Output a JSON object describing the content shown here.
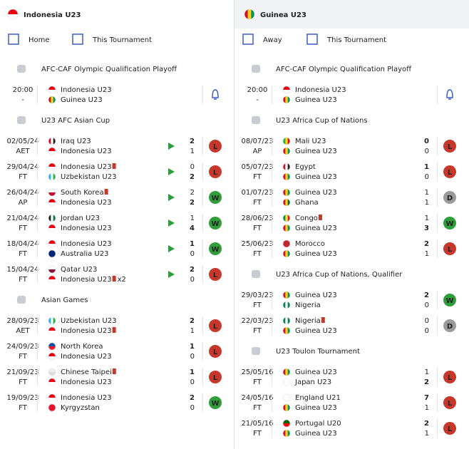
{
  "flags": {
    "Indonesia U23": [
      "#e70011",
      "#ffffff"
    ],
    "Guinea U23": [
      "#ce1126",
      "#fcd116",
      "#009460"
    ],
    "Iraq U23": [
      "#ce1126",
      "#ffffff",
      "#222222"
    ],
    "Uzbekistan U23": [
      "#1eb5e6",
      "#ffffff",
      "#1eb53a"
    ],
    "South Korea": [
      "#ffffff",
      "#c60c30"
    ],
    "Jordan U23": [
      "#222222",
      "#ffffff",
      "#007a3d"
    ],
    "Australia U23": [
      "#00247d",
      "#00247d"
    ],
    "Qatar U23": [
      "#ffffff",
      "#8a1538"
    ],
    "North Korea": [
      "#024fa2",
      "#ed1c27"
    ],
    "Chinese Taipei": [
      "#eeeeee",
      "#dddddd"
    ],
    "Kyrgyzstan": [
      "#e8112d",
      "#e8112d"
    ],
    "Mali U23": [
      "#14b53a",
      "#fcd116",
      "#ce1126"
    ],
    "Egypt": [
      "#ce1126",
      "#ffffff",
      "#222222"
    ],
    "Ghana": [
      "#ce1126",
      "#fcd116",
      "#006b3f"
    ],
    "Congo": [
      "#009543",
      "#fbde4a",
      "#dc241f"
    ],
    "Morocco": [
      "#c1272d",
      "#c1272d"
    ],
    "Nigeria": [
      "#008751",
      "#ffffff",
      "#008751"
    ],
    "Japan U23": [
      "#ffffff",
      "#ffffff"
    ],
    "England U21": [
      "#ffffff",
      "#ffffff"
    ],
    "Portugal U20": [
      "#006600",
      "#ff0000"
    ]
  },
  "columns": [
    {
      "team": "Indonesia U23",
      "filters": [
        "Home",
        "This Tournament"
      ],
      "sections": [
        {
          "competition": "AFC-CAF Olympic Qualification Playoff",
          "matches": [
            {
              "date": "20:00",
              "status": "-",
              "home": "Indonesia U23",
              "away": "Guinea U23",
              "bell": true
            }
          ]
        },
        {
          "competition": "U23 AFC Asian Cup",
          "matches": [
            {
              "date": "02/05/24",
              "status": "AET",
              "home": "Iraq U23",
              "away": "Indonesia U23",
              "home_score": 2,
              "away_score": 1,
              "result": "L",
              "video": true
            },
            {
              "date": "29/04/24",
              "status": "FT",
              "home": "Indonesia U23",
              "away": "Uzbekistan U23",
              "home_score": 0,
              "away_score": 2,
              "result": "L",
              "video": true,
              "home_card": true
            },
            {
              "date": "26/04/24",
              "status": "AP",
              "home": "South Korea",
              "away": "Indonesia U23",
              "home_score": 2,
              "away_score": 2,
              "result": "W",
              "video": true,
              "home_card": true
            },
            {
              "date": "21/04/24",
              "status": "FT",
              "home": "Jordan U23",
              "away": "Indonesia U23",
              "home_score": 1,
              "away_score": 4,
              "result": "W",
              "video": true
            },
            {
              "date": "18/04/24",
              "status": "FT",
              "home": "Indonesia U23",
              "away": "Australia U23",
              "home_score": 1,
              "away_score": 0,
              "result": "W",
              "video": true
            },
            {
              "date": "15/04/24",
              "status": "FT",
              "home": "Qatar U23",
              "away": "Indonesia U23",
              "home_score": 2,
              "away_score": 0,
              "result": "L",
              "video": true,
              "away_card": true,
              "away_card_label": "x2"
            }
          ]
        },
        {
          "competition": "Asian Games",
          "matches": [
            {
              "date": "28/09/23",
              "status": "AET",
              "home": "Uzbekistan U23",
              "away": "Indonesia U23",
              "home_score": 2,
              "away_score": 1,
              "result": "L",
              "away_card": true
            },
            {
              "date": "24/09/23",
              "status": "FT",
              "home": "North Korea",
              "away": "Indonesia U23",
              "home_score": 1,
              "away_score": 0,
              "result": "L"
            },
            {
              "date": "21/09/23",
              "status": "FT",
              "home": "Chinese Taipei",
              "away": "Indonesia U23",
              "home_score": 1,
              "away_score": 0,
              "result": "L",
              "home_card": true
            },
            {
              "date": "19/09/23",
              "status": "FT",
              "home": "Indonesia U23",
              "away": "Kyrgyzstan",
              "home_score": 2,
              "away_score": 0,
              "result": "W"
            }
          ]
        }
      ]
    },
    {
      "team": "Guinea U23",
      "filters": [
        "Away",
        "This Tournament"
      ],
      "sections": [
        {
          "competition": "AFC-CAF Olympic Qualification Playoff",
          "matches": [
            {
              "date": "20:00",
              "status": "-",
              "home": "Indonesia U23",
              "away": "Guinea U23",
              "bell": true
            }
          ]
        },
        {
          "competition": "U23 Africa Cup of Nations",
          "matches": [
            {
              "date": "08/07/23",
              "status": "AP",
              "home": "Mali U23",
              "away": "Guinea U23",
              "home_score": 0,
              "away_score": 0,
              "result": "L"
            },
            {
              "date": "05/07/23",
              "status": "FT",
              "home": "Egypt",
              "away": "Guinea U23",
              "home_score": 1,
              "away_score": 0,
              "result": "L"
            },
            {
              "date": "01/07/23",
              "status": "FT",
              "home": "Guinea U23",
              "away": "Ghana",
              "home_score": 1,
              "away_score": 1,
              "result": "D"
            },
            {
              "date": "28/06/23",
              "status": "FT",
              "home": "Congo",
              "away": "Guinea U23",
              "home_score": 1,
              "away_score": 3,
              "result": "W",
              "home_card": true
            },
            {
              "date": "25/06/23",
              "status": "FT",
              "home": "Morocco",
              "away": "Guinea U23",
              "home_score": 2,
              "away_score": 1,
              "result": "L"
            }
          ]
        },
        {
          "competition": "U23 Africa Cup of Nations, Qualifier",
          "matches": [
            {
              "date": "29/03/23",
              "status": "FT",
              "home": "Guinea U23",
              "away": "Nigeria",
              "home_score": 2,
              "away_score": 0,
              "result": "W"
            },
            {
              "date": "22/03/23",
              "status": "FT",
              "home": "Nigeria",
              "away": "Guinea U23",
              "home_score": 0,
              "away_score": 0,
              "result": "D",
              "home_card": true
            }
          ]
        },
        {
          "competition": "U23 Toulon Tournament",
          "matches": [
            {
              "date": "25/05/16",
              "status": "FT",
              "home": "Guinea U23",
              "away": "Japan U23",
              "home_score": 1,
              "away_score": 2,
              "result": "L"
            },
            {
              "date": "24/05/16",
              "status": "FT",
              "home": "England U21",
              "away": "Guinea U23",
              "home_score": 7,
              "away_score": 1,
              "result": "L"
            },
            {
              "date": "21/05/16",
              "status": "FT",
              "home": "Portugal U20",
              "away": "Guinea U23",
              "home_score": 2,
              "away_score": 1,
              "result": "L"
            }
          ]
        }
      ]
    }
  ]
}
